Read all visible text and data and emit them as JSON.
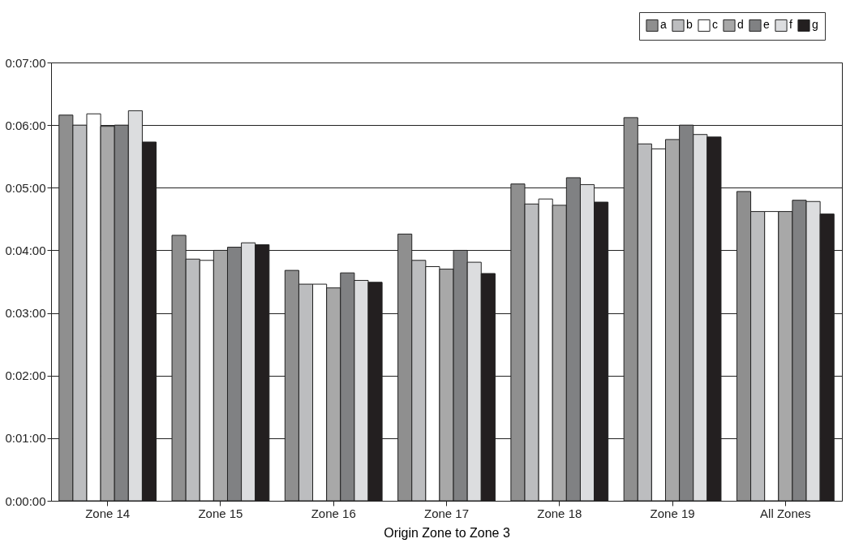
{
  "chart_data": {
    "type": "bar",
    "xlabel": "Origin Zone to Zone 3",
    "categories": [
      "Zone 14",
      "Zone 15",
      "Zone 16",
      "Zone 17",
      "Zone 18",
      "Zone 19",
      "All Zones"
    ],
    "series": [
      {
        "name": "a",
        "color": "#8f8f8f",
        "values": [
          6.16,
          4.24,
          3.68,
          4.26,
          5.06,
          6.12,
          4.94
        ]
      },
      {
        "name": "b",
        "color": "#bcbdbf",
        "values": [
          6.0,
          3.86,
          3.46,
          3.84,
          4.74,
          5.7,
          4.62
        ]
      },
      {
        "name": "c",
        "color": "#ffffff",
        "values": [
          6.18,
          3.84,
          3.46,
          3.74,
          4.82,
          5.62,
          4.62
        ]
      },
      {
        "name": "d",
        "color": "#a8a8a8",
        "values": [
          5.98,
          4.0,
          3.4,
          3.7,
          4.72,
          5.77,
          4.62
        ]
      },
      {
        "name": "e",
        "color": "#808183",
        "values": [
          6.0,
          4.05,
          3.64,
          4.0,
          5.16,
          6.0,
          4.8
        ]
      },
      {
        "name": "f",
        "color": "#dcdddf",
        "values": [
          6.23,
          4.12,
          3.52,
          3.81,
          5.05,
          5.85,
          4.78
        ]
      },
      {
        "name": "g",
        "color": "#231f20",
        "values": [
          5.73,
          4.09,
          3.49,
          3.63,
          4.77,
          5.81,
          4.58
        ]
      }
    ],
    "ylim": [
      0,
      7
    ],
    "yticks": [
      {
        "value": 0,
        "label": "0:00:00"
      },
      {
        "value": 1,
        "label": "0:01:00"
      },
      {
        "value": 2,
        "label": "0:02:00"
      },
      {
        "value": 3,
        "label": "0:03:00"
      },
      {
        "value": 4,
        "label": "0:04:00"
      },
      {
        "value": 5,
        "label": "0:05:00"
      },
      {
        "value": 6,
        "label": "0:06:00"
      },
      {
        "value": 7,
        "label": "0:07:00"
      }
    ],
    "grid": "y",
    "legend": "top right"
  }
}
